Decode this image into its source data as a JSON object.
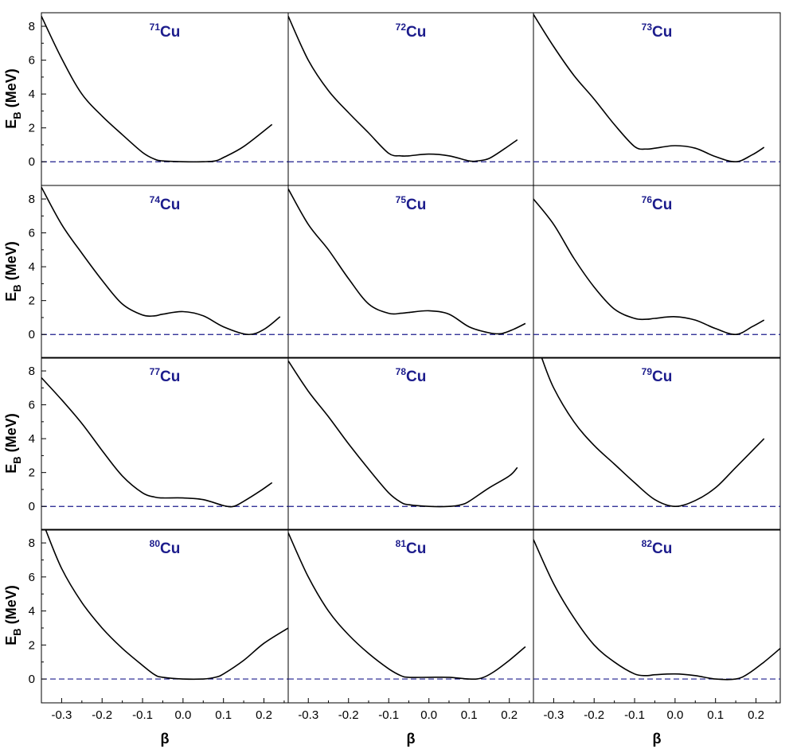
{
  "figure": {
    "ylabel_main": "E",
    "ylabel_sub": "B",
    "ylabel_unit": " (MeV)",
    "xlabel": "β",
    "title_color": "#1c1c8c",
    "curve_color": "#000000",
    "reference_line_color": "#1c1c8c"
  },
  "chart_data": [
    {
      "type": "line",
      "title_mass": "71",
      "title_element": "Cu",
      "xlim": [
        -0.35,
        0.26
      ],
      "ylim": [
        -1.4,
        8.8
      ],
      "x_ticks": [
        "-0.3",
        "-0.2",
        "-0.1",
        "0.0",
        "0.1",
        "0.2"
      ],
      "y_ticks": [
        "0",
        "2",
        "4",
        "6",
        "8"
      ],
      "reference_y": 0,
      "x": [
        -0.35,
        -0.3,
        -0.25,
        -0.2,
        -0.15,
        -0.1,
        -0.07,
        -0.05,
        0.0,
        0.05,
        0.08,
        0.1,
        0.15,
        0.22
      ],
      "y": [
        8.6,
        6.1,
        4.0,
        2.7,
        1.6,
        0.55,
        0.15,
        0.05,
        0.0,
        0.0,
        0.05,
        0.25,
        0.9,
        2.2
      ]
    },
    {
      "type": "line",
      "title_mass": "72",
      "title_element": "Cu",
      "xlim": [
        -0.35,
        0.26
      ],
      "ylim": [
        -1.4,
        8.8
      ],
      "x_ticks": [
        "-0.3",
        "-0.2",
        "-0.1",
        "0.0",
        "0.1",
        "0.2"
      ],
      "y_ticks": [
        "0",
        "2",
        "4",
        "6",
        "8"
      ],
      "reference_y": 0,
      "x": [
        -0.35,
        -0.3,
        -0.25,
        -0.2,
        -0.15,
        -0.1,
        -0.07,
        -0.05,
        0.0,
        0.05,
        0.1,
        0.12,
        0.15,
        0.19,
        0.22
      ],
      "y": [
        8.6,
        6.0,
        4.2,
        2.9,
        1.7,
        0.5,
        0.35,
        0.35,
        0.45,
        0.35,
        0.05,
        0.05,
        0.2,
        0.8,
        1.3
      ]
    },
    {
      "type": "line",
      "title_mass": "73",
      "title_element": "Cu",
      "xlim": [
        -0.35,
        0.26
      ],
      "ylim": [
        -1.4,
        8.8
      ],
      "x_ticks": [
        "-0.3",
        "-0.2",
        "-0.1",
        "0.0",
        "0.1",
        "0.2"
      ],
      "y_ticks": [
        "0",
        "2",
        "4",
        "6",
        "8"
      ],
      "reference_y": 0,
      "x": [
        -0.35,
        -0.3,
        -0.25,
        -0.2,
        -0.15,
        -0.1,
        -0.07,
        -0.05,
        0.0,
        0.05,
        0.1,
        0.15,
        0.19,
        0.22
      ],
      "y": [
        8.7,
        6.8,
        5.1,
        3.7,
        2.2,
        0.9,
        0.75,
        0.8,
        0.95,
        0.8,
        0.3,
        0.0,
        0.4,
        0.85
      ]
    },
    {
      "type": "line",
      "title_mass": "74",
      "title_element": "Cu",
      "xlim": [
        -0.35,
        0.26
      ],
      "ylim": [
        -1.4,
        8.8
      ],
      "x_ticks": [
        "-0.3",
        "-0.2",
        "-0.1",
        "0.0",
        "0.1",
        "0.2"
      ],
      "y_ticks": [
        "0",
        "2",
        "4",
        "6",
        "8"
      ],
      "reference_y": 0,
      "x": [
        -0.35,
        -0.3,
        -0.25,
        -0.2,
        -0.15,
        -0.1,
        -0.07,
        -0.05,
        0.0,
        0.05,
        0.1,
        0.16,
        0.2,
        0.24
      ],
      "y": [
        8.7,
        6.5,
        4.8,
        3.2,
        1.8,
        1.15,
        1.1,
        1.2,
        1.35,
        1.1,
        0.45,
        0.0,
        0.3,
        1.05
      ]
    },
    {
      "type": "line",
      "title_mass": "75",
      "title_element": "Cu",
      "xlim": [
        -0.35,
        0.26
      ],
      "ylim": [
        -1.4,
        8.8
      ],
      "x_ticks": [
        "-0.3",
        "-0.2",
        "-0.1",
        "0.0",
        "0.1",
        "0.2"
      ],
      "y_ticks": [
        "0",
        "2",
        "4",
        "6",
        "8"
      ],
      "reference_y": 0,
      "x": [
        -0.35,
        -0.3,
        -0.25,
        -0.2,
        -0.15,
        -0.1,
        -0.07,
        -0.05,
        0.0,
        0.05,
        0.1,
        0.15,
        0.18,
        0.21,
        0.24
      ],
      "y": [
        8.6,
        6.5,
        5.0,
        3.3,
        1.8,
        1.25,
        1.25,
        1.3,
        1.4,
        1.2,
        0.45,
        0.1,
        0.05,
        0.3,
        0.65
      ]
    },
    {
      "type": "line",
      "title_mass": "76",
      "title_element": "Cu",
      "xlim": [
        -0.35,
        0.26
      ],
      "ylim": [
        -1.4,
        8.8
      ],
      "x_ticks": [
        "-0.3",
        "-0.2",
        "-0.1",
        "0.0",
        "0.1",
        "0.2"
      ],
      "y_ticks": [
        "0",
        "2",
        "4",
        "6",
        "8"
      ],
      "reference_y": 0,
      "x": [
        -0.35,
        -0.3,
        -0.25,
        -0.2,
        -0.15,
        -0.1,
        -0.07,
        -0.05,
        0.0,
        0.05,
        0.1,
        0.15,
        0.19,
        0.22
      ],
      "y": [
        8.0,
        6.5,
        4.5,
        2.8,
        1.5,
        0.95,
        0.9,
        0.95,
        1.05,
        0.85,
        0.35,
        0.0,
        0.45,
        0.85
      ]
    },
    {
      "type": "line",
      "title_mass": "77",
      "title_element": "Cu",
      "xlim": [
        -0.35,
        0.26
      ],
      "ylim": [
        -1.4,
        8.8
      ],
      "x_ticks": [
        "-0.3",
        "-0.2",
        "-0.1",
        "0.0",
        "0.1",
        "0.2"
      ],
      "y_ticks": [
        "0",
        "2",
        "4",
        "6",
        "8"
      ],
      "reference_y": 0,
      "x": [
        -0.35,
        -0.3,
        -0.25,
        -0.2,
        -0.15,
        -0.1,
        -0.07,
        -0.05,
        0.0,
        0.05,
        0.1,
        0.125,
        0.15,
        0.19,
        0.22
      ],
      "y": [
        7.6,
        6.3,
        4.9,
        3.3,
        1.8,
        0.8,
        0.55,
        0.5,
        0.5,
        0.4,
        0.05,
        0.0,
        0.3,
        0.9,
        1.4
      ]
    },
    {
      "type": "line",
      "title_mass": "78",
      "title_element": "Cu",
      "xlim": [
        -0.35,
        0.26
      ],
      "ylim": [
        -1.4,
        8.8
      ],
      "x_ticks": [
        "-0.3",
        "-0.2",
        "-0.1",
        "0.0",
        "0.1",
        "0.2"
      ],
      "y_ticks": [
        "0",
        "2",
        "4",
        "6",
        "8"
      ],
      "reference_y": 0,
      "x": [
        -0.35,
        -0.3,
        -0.25,
        -0.2,
        -0.15,
        -0.1,
        -0.07,
        -0.05,
        0.0,
        0.05,
        0.08,
        0.1,
        0.15,
        0.2,
        0.22
      ],
      "y": [
        8.6,
        6.8,
        5.3,
        3.7,
        2.2,
        0.8,
        0.25,
        0.1,
        0.0,
        0.0,
        0.1,
        0.3,
        1.1,
        1.8,
        2.3
      ]
    },
    {
      "type": "line",
      "title_mass": "79",
      "title_element": "Cu",
      "xlim": [
        -0.35,
        0.26
      ],
      "ylim": [
        -1.4,
        8.8
      ],
      "x_ticks": [
        "-0.3",
        "-0.2",
        "-0.1",
        "0.0",
        "0.1",
        "0.2"
      ],
      "y_ticks": [
        "0",
        "2",
        "4",
        "6",
        "8"
      ],
      "reference_y": 0,
      "x": [
        -0.33,
        -0.3,
        -0.25,
        -0.2,
        -0.15,
        -0.1,
        -0.05,
        0.0,
        0.05,
        0.1,
        0.15,
        0.22
      ],
      "y": [
        8.8,
        7.0,
        5.0,
        3.6,
        2.5,
        1.4,
        0.4,
        0.0,
        0.35,
        1.1,
        2.3,
        4.0
      ]
    },
    {
      "type": "line",
      "title_mass": "80",
      "title_element": "Cu",
      "xlim": [
        -0.35,
        0.26
      ],
      "ylim": [
        -1.4,
        8.8
      ],
      "x_ticks": [
        "-0.3",
        "-0.2",
        "-0.1",
        "0.0",
        "0.1",
        "0.2"
      ],
      "y_ticks": [
        "0",
        "2",
        "4",
        "6",
        "8"
      ],
      "reference_y": 0,
      "x": [
        -0.34,
        -0.3,
        -0.25,
        -0.2,
        -0.15,
        -0.1,
        -0.07,
        -0.05,
        0.0,
        0.05,
        0.08,
        0.1,
        0.15,
        0.2,
        0.26
      ],
      "y": [
        8.8,
        6.5,
        4.5,
        3.0,
        1.8,
        0.8,
        0.25,
        0.1,
        0.0,
        0.0,
        0.1,
        0.3,
        1.1,
        2.1,
        3.0
      ]
    },
    {
      "type": "line",
      "title_mass": "81",
      "title_element": "Cu",
      "xlim": [
        -0.35,
        0.26
      ],
      "ylim": [
        -1.4,
        8.8
      ],
      "x_ticks": [
        "-0.3",
        "-0.2",
        "-0.1",
        "0.0",
        "0.1",
        "0.2"
      ],
      "y_ticks": [
        "0",
        "2",
        "4",
        "6",
        "8"
      ],
      "reference_y": 0,
      "x": [
        -0.35,
        -0.3,
        -0.25,
        -0.2,
        -0.15,
        -0.1,
        -0.07,
        -0.05,
        0.0,
        0.05,
        0.1,
        0.13,
        0.16,
        0.2,
        0.24
      ],
      "y": [
        8.6,
        6.0,
        4.0,
        2.6,
        1.5,
        0.6,
        0.2,
        0.1,
        0.1,
        0.1,
        0.0,
        0.05,
        0.4,
        1.1,
        1.9
      ]
    },
    {
      "type": "line",
      "title_mass": "82",
      "title_element": "Cu",
      "xlim": [
        -0.35,
        0.26
      ],
      "ylim": [
        -1.4,
        8.8
      ],
      "x_ticks": [
        "-0.3",
        "-0.2",
        "-0.1",
        "0.0",
        "0.1",
        "0.2"
      ],
      "y_ticks": [
        "0",
        "2",
        "4",
        "6",
        "8"
      ],
      "reference_y": 0,
      "x": [
        -0.35,
        -0.3,
        -0.25,
        -0.2,
        -0.15,
        -0.1,
        -0.07,
        -0.05,
        0.0,
        0.05,
        0.1,
        0.15,
        0.18,
        0.22,
        0.26
      ],
      "y": [
        8.2,
        5.6,
        3.6,
        2.0,
        1.0,
        0.3,
        0.2,
        0.25,
        0.3,
        0.2,
        0.0,
        0.0,
        0.3,
        1.0,
        1.8
      ]
    }
  ]
}
